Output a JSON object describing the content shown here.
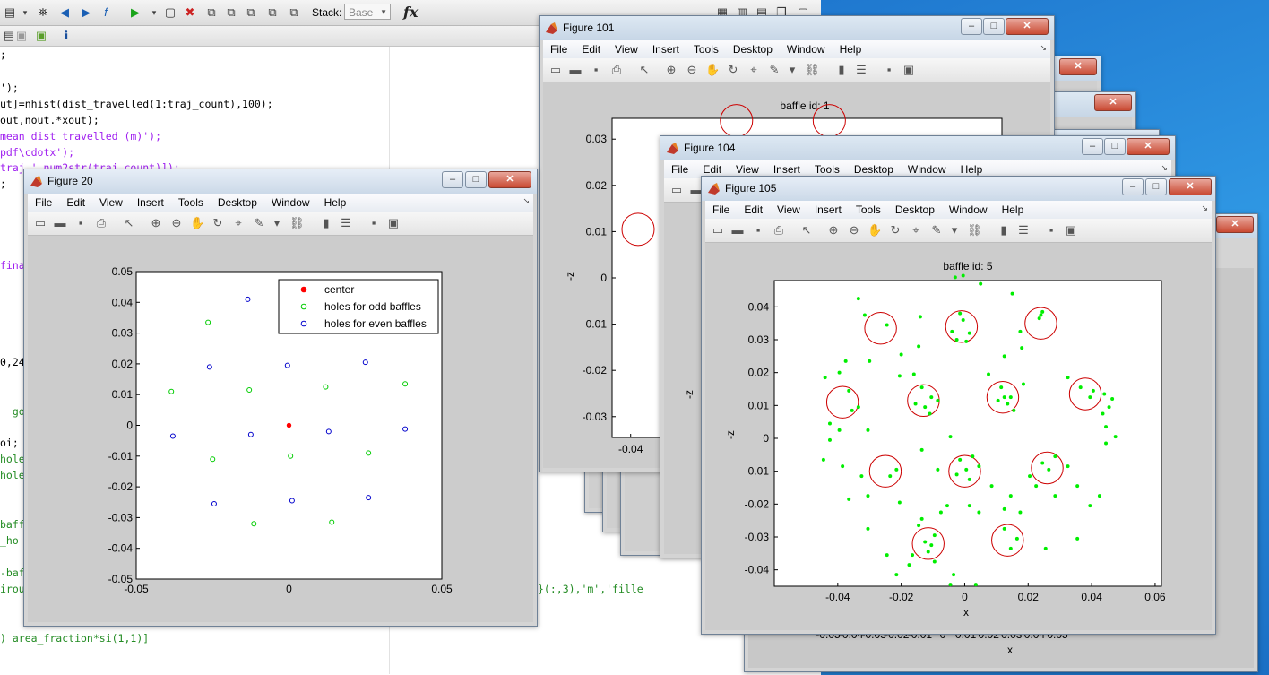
{
  "editor": {
    "stack_label": "Stack:",
    "stack_value": "Base",
    "code_lines": [
      {
        "text": ";",
        "cls": "c-blk"
      },
      {
        "text": "');",
        "cls": "c-blk"
      },
      {
        "text": "ut]=nhist(dist_travelled(1:traj_count),100);",
        "cls": "c-blk"
      },
      {
        "text": "out,nout.*xout);",
        "cls": "c-blk"
      },
      {
        "text": "mean dist travelled (m)');",
        "cls": "c-pur"
      },
      {
        "text": "pdf\\cdotx');",
        "cls": "c-pur"
      },
      {
        "text": "traj ' num2str(traj_count)]);",
        "cls": "c-pur"
      },
      {
        "text": ";",
        "cls": "c-blk"
      },
      {
        "text": "fina",
        "cls": "c-pur"
      },
      {
        "text": "0,24",
        "cls": "c-blk"
      },
      {
        "text": "  go",
        "cls": "c-grn"
      },
      {
        "text": "oi;",
        "cls": "c-blk"
      },
      {
        "text": "hole",
        "cls": "c-grn"
      },
      {
        "text": "hole",
        "cls": "c-grn"
      },
      {
        "text": "baff",
        "cls": "c-grn"
      },
      {
        "text": "_ho",
        "cls": "c-grn"
      },
      {
        "text": "-baf",
        "cls": "c-grn"
      },
      {
        "text": "irou",
        "cls": "c-grn"
      },
      {
        "text": "}(:,3),'m','fille",
        "cls": "c-grn"
      },
      {
        "text": ") area_fraction*si(1,1)]",
        "cls": "c-grn"
      }
    ]
  },
  "menu_items": [
    "File",
    "Edit",
    "View",
    "Insert",
    "Tools",
    "Desktop",
    "Window",
    "Help"
  ],
  "figures": {
    "fig20": {
      "title": "Figure 20",
      "legend": [
        "center",
        "holes for odd baffles",
        "holes for even baffles"
      ],
      "ticks_x": [
        "-0.05",
        "0",
        "0.05"
      ],
      "ticks_y": [
        "0.05",
        "0.04",
        "0.03",
        "0.02",
        "0.01",
        "0",
        "-0.01",
        "-0.02",
        "-0.03",
        "-0.04",
        "-0.05"
      ]
    },
    "fig101": {
      "title": "Figure 101",
      "axes_title": "baffle id: 1",
      "ylabel": "-z",
      "ticks_y": [
        "0.03",
        "0.02",
        "0.01",
        "0",
        "-0.01",
        "-0.02",
        "-0.03"
      ],
      "ticks_x": [
        "-0.04"
      ]
    },
    "fig104": {
      "title": "Figure 104",
      "ylabel": "-z"
    },
    "fig105": {
      "title": "Figure 105",
      "axes_title": "baffle id: 5",
      "xlabel": "x",
      "ylabel": "-z",
      "ticks_x": [
        "-0.04",
        "-0.02",
        "0",
        "0.02",
        "0.04",
        "0.06"
      ],
      "ticks_y": [
        "0.04",
        "0.03",
        "0.02",
        "0.01",
        "0",
        "-0.01",
        "-0.02",
        "-0.03",
        "-0.04"
      ]
    },
    "back": {
      "xlabel": "x",
      "ticks_x": [
        "-0.05",
        "-0.04",
        "-0.03",
        "-0.02",
        "-0.01",
        "0",
        "0.01",
        "0.02",
        "0.03",
        "0.04",
        "0.05"
      ]
    }
  },
  "chart_data": [
    {
      "type": "scatter",
      "title": "",
      "xlabel": "",
      "ylabel": "",
      "xlim": [
        -0.05,
        0.05
      ],
      "ylim": [
        -0.05,
        0.05
      ],
      "legend_placement": "top-right",
      "series": [
        {
          "name": "center",
          "color": "#ff0000",
          "marker": "filled-circle",
          "points": [
            [
              0,
              0
            ]
          ]
        },
        {
          "name": "holes for odd baffles",
          "color": "#00cc00",
          "marker": "open-circle",
          "points": [
            [
              -0.0265,
              0.0335
            ],
            [
              -0.0385,
              0.011
            ],
            [
              -0.013,
              0.0115
            ],
            [
              0.012,
              0.0125
            ],
            [
              0.038,
              0.0135
            ],
            [
              -0.025,
              -0.011
            ],
            [
              0.0005,
              -0.01
            ],
            [
              0.026,
              -0.009
            ],
            [
              -0.0115,
              -0.032
            ],
            [
              0.014,
              -0.0315
            ]
          ]
        },
        {
          "name": "holes for even baffles",
          "color": "#0000cc",
          "marker": "open-circle",
          "points": [
            [
              -0.0135,
              0.041
            ],
            [
              -0.026,
              0.019
            ],
            [
              -0.0005,
              0.0195
            ],
            [
              0.025,
              0.0205
            ],
            [
              -0.038,
              -0.0035
            ],
            [
              -0.0125,
              -0.003
            ],
            [
              0.013,
              -0.002
            ],
            [
              0.038,
              -0.0012
            ],
            [
              -0.0245,
              -0.0255
            ],
            [
              0.001,
              -0.0245
            ],
            [
              0.026,
              -0.0235
            ]
          ]
        }
      ]
    },
    {
      "type": "scatter",
      "title": "baffle id: 5",
      "xlabel": "x",
      "ylabel": "-z",
      "xlim": [
        -0.06,
        0.062
      ],
      "ylim": [
        -0.045,
        0.048
      ],
      "holes": {
        "color": "#cc0000",
        "radius": 0.005,
        "centers": [
          [
            -0.0265,
            0.0335
          ],
          [
            -0.0385,
            0.011
          ],
          [
            -0.013,
            0.0115
          ],
          [
            0.012,
            0.0125
          ],
          [
            0.038,
            0.0135
          ],
          [
            -0.025,
            -0.01
          ],
          [
            0.0,
            -0.01
          ],
          [
            0.026,
            -0.009
          ],
          [
            -0.0115,
            -0.032
          ],
          [
            0.0135,
            -0.031
          ],
          [
            -0.001,
            0.034
          ],
          [
            0.024,
            0.035
          ]
        ]
      },
      "series": [
        {
          "name": "",
          "color": "#00ee00",
          "marker": "filled-circle",
          "points": [
            [
              -0.0335,
              0.0425
            ],
            [
              -0.0245,
              0.0345
            ],
            [
              -0.0315,
              0.0375
            ],
            [
              -0.014,
              0.037
            ],
            [
              -0.0145,
              0.028
            ],
            [
              -0.02,
              0.0255
            ],
            [
              -0.03,
              0.0235
            ],
            [
              -0.0005,
              0.0495
            ],
            [
              -0.003,
              0.049
            ],
            [
              0.005,
              0.047
            ],
            [
              -0.0005,
              0.036
            ],
            [
              -0.004,
              0.0325
            ],
            [
              0.0015,
              0.032
            ],
            [
              -0.0015,
              0.038
            ],
            [
              0.0005,
              0.0295
            ],
            [
              -0.0025,
              0.03
            ],
            [
              0.015,
              0.044
            ],
            [
              0.0235,
              0.0365
            ],
            [
              0.024,
              0.0375
            ],
            [
              0.0245,
              0.0385
            ],
            [
              0.018,
              0.0275
            ],
            [
              0.0175,
              0.0325
            ],
            [
              0.0125,
              0.025
            ],
            [
              -0.044,
              0.0185
            ],
            [
              -0.0395,
              0.02
            ],
            [
              -0.0375,
              0.0235
            ],
            [
              -0.0365,
              0.0145
            ],
            [
              -0.0335,
              0.0095
            ],
            [
              -0.0355,
              0.0085
            ],
            [
              -0.0205,
              0.019
            ],
            [
              -0.016,
              0.0195
            ],
            [
              -0.0135,
              0.0155
            ],
            [
              -0.0125,
              0.0095
            ],
            [
              -0.0105,
              0.0125
            ],
            [
              -0.0085,
              0.0115
            ],
            [
              -0.011,
              0.0075
            ],
            [
              -0.0155,
              0.0105
            ],
            [
              0.0075,
              0.0195
            ],
            [
              0.0115,
              0.0155
            ],
            [
              0.0125,
              0.0125
            ],
            [
              0.0135,
              0.0105
            ],
            [
              0.0105,
              0.0115
            ],
            [
              0.0145,
              0.0125
            ],
            [
              0.0155,
              0.0085
            ],
            [
              0.0185,
              0.0165
            ],
            [
              0.0325,
              0.0185
            ],
            [
              0.0365,
              0.0155
            ],
            [
              0.0395,
              0.0125
            ],
            [
              0.0405,
              0.0145
            ],
            [
              0.044,
              0.0135
            ],
            [
              0.0465,
              0.012
            ],
            [
              0.0455,
              0.0095
            ],
            [
              0.0435,
              0.0075
            ],
            [
              -0.0445,
              -0.0065
            ],
            [
              -0.0425,
              -0.0005
            ],
            [
              -0.0385,
              -0.0085
            ],
            [
              -0.0325,
              -0.0115
            ],
            [
              -0.0305,
              -0.0175
            ],
            [
              -0.0365,
              -0.0185
            ],
            [
              -0.0215,
              -0.0095
            ],
            [
              -0.0235,
              -0.0115
            ],
            [
              -0.0135,
              -0.0035
            ],
            [
              -0.0085,
              -0.0095
            ],
            [
              -0.0045,
              0.0005
            ],
            [
              -0.0015,
              -0.0065
            ],
            [
              0.0005,
              -0.0095
            ],
            [
              0.0025,
              -0.0055
            ],
            [
              0.0015,
              -0.0125
            ],
            [
              -0.0025,
              -0.011
            ],
            [
              0.0045,
              -0.0085
            ],
            [
              0.0085,
              -0.0145
            ],
            [
              0.0145,
              -0.0175
            ],
            [
              0.0205,
              -0.0115
            ],
            [
              0.0245,
              -0.0075
            ],
            [
              0.0265,
              -0.0095
            ],
            [
              0.0285,
              -0.0055
            ],
            [
              0.0225,
              -0.0145
            ],
            [
              0.0285,
              -0.0175
            ],
            [
              0.0325,
              -0.0085
            ],
            [
              0.0355,
              -0.0145
            ],
            [
              0.0395,
              -0.0205
            ],
            [
              0.0425,
              -0.0175
            ],
            [
              0.0445,
              -0.0015
            ],
            [
              0.0475,
              0.0005
            ],
            [
              0.0445,
              0.0035
            ],
            [
              -0.0305,
              -0.0275
            ],
            [
              -0.0245,
              -0.0355
            ],
            [
              -0.0215,
              -0.0415
            ],
            [
              -0.0175,
              -0.0385
            ],
            [
              -0.0145,
              -0.0265
            ],
            [
              -0.0125,
              -0.0315
            ],
            [
              -0.0105,
              -0.0325
            ],
            [
              -0.0115,
              -0.0345
            ],
            [
              -0.0095,
              -0.0295
            ],
            [
              -0.0165,
              -0.0355
            ],
            [
              -0.0095,
              -0.0375
            ],
            [
              -0.0035,
              -0.0415
            ],
            [
              -0.0045,
              -0.0445
            ],
            [
              0.0035,
              -0.0445
            ],
            [
              0.0145,
              -0.0335
            ],
            [
              0.0165,
              -0.0305
            ],
            [
              0.0125,
              -0.0275
            ],
            [
              0.0255,
              -0.0335
            ],
            [
              0.0355,
              -0.0305
            ],
            [
              -0.0075,
              -0.0225
            ],
            [
              -0.0055,
              -0.0205
            ],
            [
              0.0015,
              -0.0205
            ],
            [
              0.0045,
              -0.0225
            ],
            [
              0.0125,
              -0.0215
            ],
            [
              0.0175,
              -0.0225
            ],
            [
              -0.0135,
              -0.0245
            ],
            [
              -0.0205,
              -0.0195
            ],
            [
              -0.0425,
              0.0045
            ],
            [
              -0.0395,
              0.0025
            ],
            [
              -0.0305,
              0.0025
            ]
          ]
        }
      ]
    }
  ]
}
